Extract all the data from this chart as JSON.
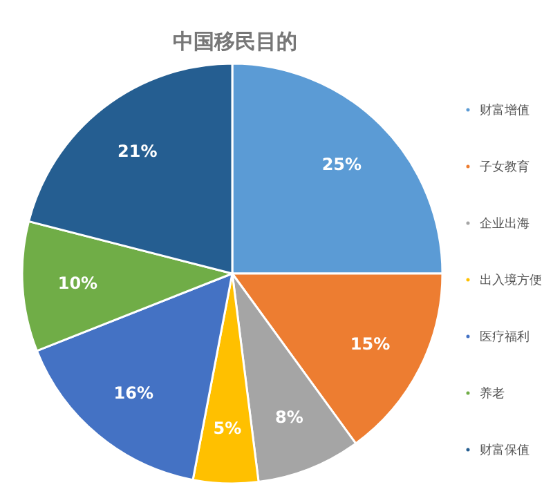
{
  "chart_data": {
    "type": "pie",
    "title": "中国移民目的",
    "categories": [
      "财富增值",
      "子女教育",
      "企业出海",
      "出入境方便",
      "医疗福利",
      "养老",
      "财富保值"
    ],
    "values": [
      25,
      15,
      8,
      5,
      16,
      10,
      21
    ],
    "value_labels": [
      "25%",
      "15%",
      "8%",
      "5%",
      "16%",
      "10%",
      "21%"
    ],
    "colors": [
      "#5b9bd5",
      "#ed7d31",
      "#a5a5a5",
      "#ffc000",
      "#4472c4",
      "#70ad47",
      "#255e91"
    ],
    "legend": "right"
  }
}
